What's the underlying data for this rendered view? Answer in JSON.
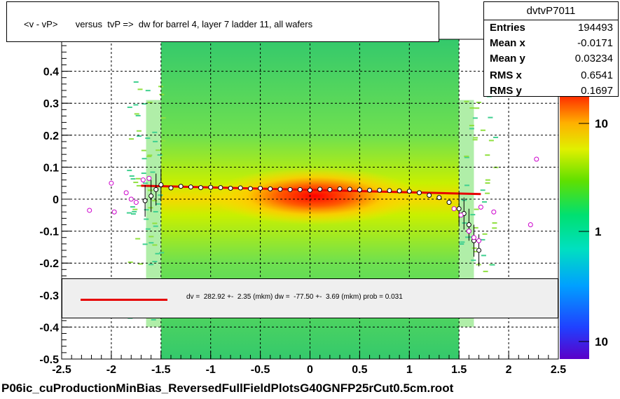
{
  "title": "<v - vP>       versus  tvP =>  dw for barrel 4, layer 7 ladder 11, all wafers",
  "stats": {
    "name": "dvtvP7011",
    "rows": [
      {
        "key": "Entries",
        "value": "194493"
      },
      {
        "key": "Mean x",
        "value": "-0.0171"
      },
      {
        "key": "Mean y",
        "value": "0.03234"
      },
      {
        "key": "RMS x",
        "value": "0.6541"
      },
      {
        "key": "RMS y",
        "value": "0.1697"
      }
    ]
  },
  "fit_text": "dv =  282.92 +-  2.35 (mkm) dw =  -77.50 +-  3.69 (mkm) prob = 0.031",
  "footer": "P06ic_cuProductionMinBias_ReversedFullFieldPlotsG40GNFP25rCut0.5cm.root",
  "colors": {
    "fit_line": "#e60000",
    "profile_marker": "#000000",
    "outlier_marker": "#cc00cc"
  },
  "chart_data": {
    "type": "heatmap",
    "xlim": [
      -2.5,
      2.5
    ],
    "ylim": [
      -0.5,
      0.5
    ],
    "x_ticks": [
      "-2.5",
      "-2",
      "-1.5",
      "-1",
      "-0.5",
      "0",
      "0.5",
      "1",
      "1.5",
      "2",
      "2.5"
    ],
    "y_ticks": [
      "-0.5",
      "-0.4",
      "-0.3",
      "-0.2",
      "-0.1",
      "0",
      "0.1",
      "0.2",
      "0.3",
      "0.4"
    ],
    "x_tick_values": [
      -2.5,
      -2,
      -1.5,
      -1,
      -0.5,
      0,
      0.5,
      1,
      1.5,
      2,
      2.5
    ],
    "y_tick_values": [
      -0.5,
      -0.4,
      -0.3,
      -0.2,
      -0.1,
      0,
      0.1,
      0.2,
      0.3,
      0.4
    ],
    "grid": true,
    "colorbar_labels": [
      "10",
      "1",
      "10"
    ],
    "z_scale": "log",
    "fit_line": {
      "x": [
        -1.7,
        1.72
      ],
      "y": [
        0.042,
        0.016
      ]
    },
    "profile": {
      "x": [
        -1.66,
        -1.6,
        -1.55,
        -1.5,
        -1.4,
        -1.3,
        -1.2,
        -1.1,
        -1.0,
        -0.9,
        -0.8,
        -0.7,
        -0.6,
        -0.5,
        -0.4,
        -0.3,
        -0.2,
        -0.1,
        0.0,
        0.1,
        0.2,
        0.3,
        0.4,
        0.5,
        0.6,
        0.7,
        0.8,
        0.9,
        1.0,
        1.1,
        1.2,
        1.3,
        1.4,
        1.5,
        1.55,
        1.6,
        1.65,
        1.7
      ],
      "y": [
        -0.005,
        0.01,
        0.03,
        0.045,
        0.035,
        0.04,
        0.038,
        0.036,
        0.037,
        0.036,
        0.034,
        0.035,
        0.033,
        0.034,
        0.032,
        0.031,
        0.03,
        0.03,
        0.028,
        0.031,
        0.03,
        0.032,
        0.031,
        0.029,
        0.028,
        0.028,
        0.027,
        0.026,
        0.025,
        0.02,
        0.012,
        0.005,
        -0.01,
        -0.03,
        -0.045,
        -0.08,
        -0.13,
        -0.16
      ]
    },
    "outliers": {
      "x": [
        -2.22,
        -2.0,
        -1.97,
        -1.85,
        -1.8,
        -1.75,
        -1.68,
        -1.62,
        1.45,
        1.52,
        1.6,
        1.65,
        1.7,
        1.72,
        1.85,
        2.22,
        2.28
      ],
      "y": [
        -0.035,
        0.05,
        -0.04,
        0.02,
        0.0,
        -0.01,
        0.06,
        0.065,
        -0.03,
        -0.05,
        -0.1,
        -0.12,
        -0.13,
        -0.025,
        -0.04,
        -0.08,
        0.125
      ]
    }
  }
}
